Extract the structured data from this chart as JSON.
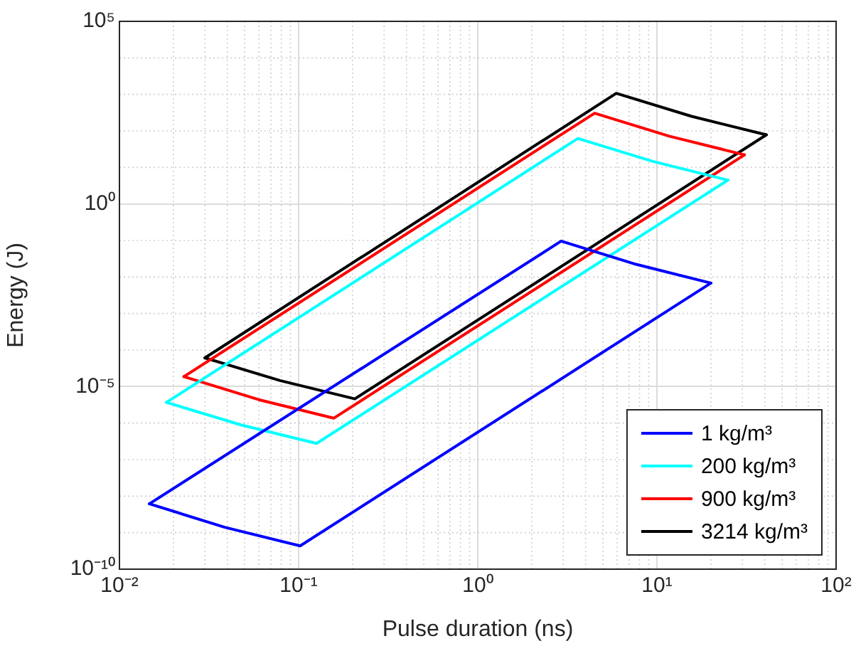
{
  "chart_data": {
    "type": "line",
    "xlabel": "Pulse duration (ns)",
    "ylabel": "Energy (J)",
    "log": "xy",
    "grid": true,
    "legend": "bottom right",
    "marker": "none",
    "line_style": "solid",
    "xlim": [
      0.01,
      100
    ],
    "xticks": [
      {
        "value": 0.01,
        "label": "10⁻²"
      },
      {
        "value": 0.1,
        "label": "10⁻¹"
      },
      {
        "value": 1,
        "label": "10⁰"
      },
      {
        "value": 10,
        "label": "10¹"
      },
      {
        "value": 100,
        "label": "10²"
      }
    ],
    "ylim": [
      1e-10,
      100000
    ],
    "yticks": [
      {
        "value": 1e-10,
        "label": "10⁻¹⁰"
      },
      {
        "value": 1e-05,
        "label": "10⁻⁵"
      },
      {
        "value": 1,
        "label": "10⁰"
      },
      {
        "value": 100000,
        "label": "10⁵"
      }
    ],
    "series": [
      {
        "name": "1 kg/m³",
        "color": "#0000ff",
        "x": [
          0.0147,
          0.0387,
          0.102,
          20.0
        ],
        "values": [
          6.15e-09,
          1.4e-09,
          4.34e-10,
          0.0068
        ]
      },
      {
        "color": "#0000ff",
        "x": [
          0.0147,
          2.92,
          7.65,
          20.0
        ],
        "values": [
          6.15e-09,
          0.096,
          0.0222,
          0.0068
        ]
      },
      {
        "name": "200 kg/m³",
        "color": "#00ffff",
        "x": [
          0.0183,
          0.0481,
          0.126,
          24.9
        ],
        "values": [
          3.68e-06,
          8.8e-07,
          2.77e-07,
          4.49
        ]
      },
      {
        "color": "#00ffff",
        "x": [
          0.0183,
          3.62,
          9.5,
          24.9
        ],
        "values": [
          3.68e-06,
          62,
          14.6,
          4.49
        ]
      },
      {
        "name": "900 kg/m³",
        "color": "#ff0000",
        "x": [
          0.0229,
          0.0598,
          0.157,
          30.8
        ],
        "values": [
          1.87e-05,
          4.39e-06,
          1.36e-06,
          22.1
        ]
      },
      {
        "color": "#ff0000",
        "x": [
          0.0229,
          4.49,
          11.7,
          30.8
        ],
        "values": [
          1.87e-05,
          306,
          71.8,
          22.1
        ]
      },
      {
        "name": "3214 kg/m³",
        "color": "#000000",
        "x": [
          0.03,
          0.0787,
          0.206,
          40.8
        ],
        "values": [
          6.1e-05,
          1.46e-05,
          4.6e-06,
          78
        ]
      },
      {
        "color": "#000000",
        "x": [
          0.03,
          5.93,
          15.6,
          40.8
        ],
        "values": [
          6.1e-05,
          1070,
          251,
          78
        ]
      }
    ]
  }
}
